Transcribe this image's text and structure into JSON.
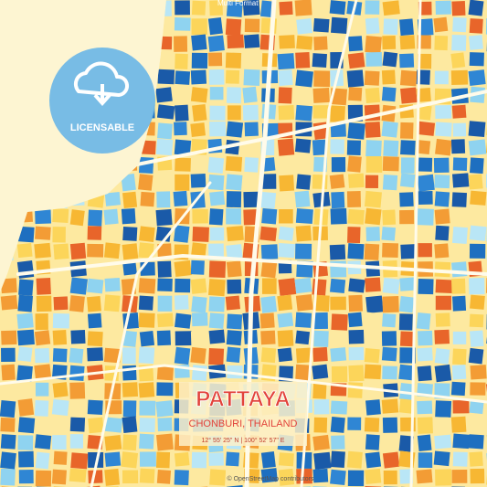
{
  "header": {
    "format": "Multi Format"
  },
  "badge": {
    "label": "LICENSABLE"
  },
  "map": {
    "title": "PATTAYA",
    "subtitle": "CHONBURI, THAILAND",
    "coordinates": "12° 55' 25\" N  |  100° 52' 57\" E"
  },
  "footer": {
    "attribution": "© OpenStreetMap contributors"
  }
}
